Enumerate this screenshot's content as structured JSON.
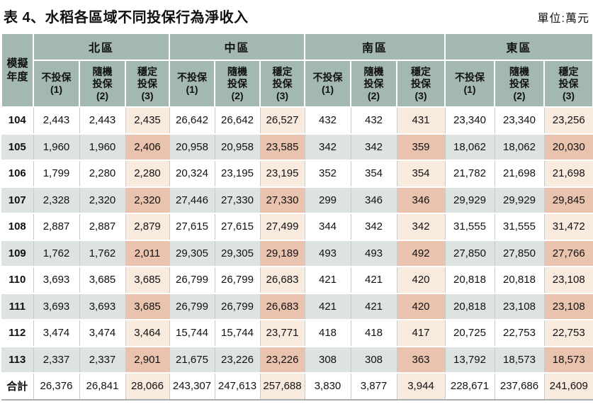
{
  "title": "表 4、水稻各區域不同投保行為淨收入",
  "unit_label": "單位:萬元",
  "colors": {
    "header_bg": "#A3B8B3",
    "stripe_row_bg": "#DCE3E0",
    "stable_column_light": "#F9EADE",
    "stable_column_dark": "#E9C3AE"
  },
  "table": {
    "corner_header": "模擬\n年度",
    "region_headers": [
      "北區",
      "中區",
      "南區",
      "東區"
    ],
    "behavior_headers": [
      "不投保\n(1)",
      "隨機\n投保\n(2)",
      "穩定\n投保\n(3)"
    ],
    "rows": [
      {
        "label": "104",
        "values": [
          "2,443",
          "2,443",
          "2,435",
          "26,642",
          "26,642",
          "26,527",
          "432",
          "432",
          "431",
          "23,340",
          "23,340",
          "23,256"
        ]
      },
      {
        "label": "105",
        "values": [
          "1,960",
          "1,960",
          "2,406",
          "20,958",
          "20,958",
          "23,585",
          "342",
          "342",
          "359",
          "18,062",
          "18,062",
          "20,030"
        ]
      },
      {
        "label": "106",
        "values": [
          "1,799",
          "2,280",
          "2,280",
          "20,324",
          "23,195",
          "23,195",
          "352",
          "354",
          "354",
          "21,782",
          "21,698",
          "21,698"
        ]
      },
      {
        "label": "107",
        "values": [
          "2,328",
          "2,320",
          "2,320",
          "27,446",
          "27,330",
          "27,330",
          "299",
          "346",
          "346",
          "29,929",
          "29,929",
          "29,845"
        ]
      },
      {
        "label": "108",
        "values": [
          "2,887",
          "2,887",
          "2,879",
          "27,615",
          "27,615",
          "27,499",
          "344",
          "342",
          "342",
          "31,555",
          "31,555",
          "31,472"
        ]
      },
      {
        "label": "109",
        "values": [
          "1,762",
          "1,762",
          "2,011",
          "29,305",
          "29,305",
          "29,189",
          "493",
          "493",
          "492",
          "27,850",
          "27,850",
          "27,766"
        ]
      },
      {
        "label": "110",
        "values": [
          "3,693",
          "3,685",
          "3,685",
          "26,799",
          "26,799",
          "26,683",
          "421",
          "421",
          "420",
          "20,818",
          "20,818",
          "23,108"
        ]
      },
      {
        "label": "111",
        "values": [
          "3,693",
          "3,693",
          "3,685",
          "26,799",
          "26,799",
          "26,683",
          "421",
          "421",
          "420",
          "20,818",
          "23,108",
          "23,108"
        ]
      },
      {
        "label": "112",
        "values": [
          "3,474",
          "3,474",
          "3,464",
          "15,744",
          "15,744",
          "23,771",
          "418",
          "418",
          "417",
          "20,725",
          "22,753",
          "22,753"
        ]
      },
      {
        "label": "113",
        "values": [
          "2,337",
          "2,337",
          "2,901",
          "21,675",
          "23,226",
          "23,226",
          "308",
          "308",
          "363",
          "13,792",
          "18,573",
          "18,573"
        ]
      },
      {
        "label": "合計",
        "values": [
          "26,376",
          "26,841",
          "28,066",
          "243,307",
          "247,613",
          "257,688",
          "3,830",
          "3,877",
          "3,944",
          "228,671",
          "237,686",
          "241,609"
        ]
      }
    ]
  }
}
